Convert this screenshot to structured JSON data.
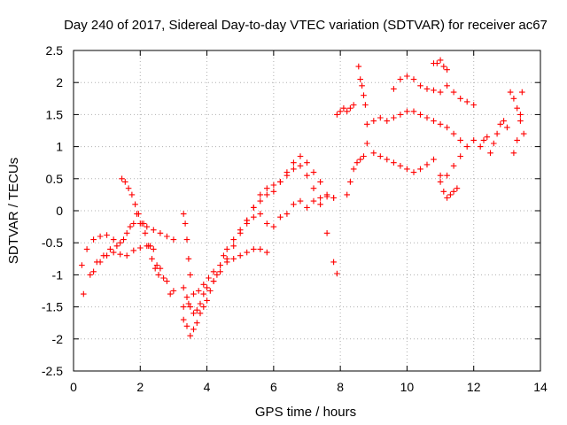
{
  "chart_data": {
    "type": "scatter",
    "title": "Day 240 of 2017, Sidereal Day-to-day VTEC variation (SDTVAR) for receiver ac67",
    "xlabel": "GPS time / hours",
    "ylabel": "SDTVAR / TECUs",
    "xlim": [
      0,
      14
    ],
    "ylim": [
      -2.5,
      2.5
    ],
    "xticks": [
      "0",
      "2",
      "4",
      "6",
      "8",
      "10",
      "12",
      "14"
    ],
    "yticks": [
      "-2.5",
      "-2",
      "-1.5",
      "-1",
      "-0.5",
      "0",
      "0.5",
      "1",
      "1.5",
      "2",
      "2.5"
    ],
    "grid": true,
    "marker": "plus",
    "color": "#ff0000",
    "series": [
      {
        "x": [
          0.25,
          0.4,
          0.6,
          0.8,
          1.0,
          1.2,
          1.4,
          1.6,
          1.8,
          2.0,
          2.2,
          2.4,
          2.6,
          2.8,
          3.0
        ],
        "y": [
          -0.85,
          -0.6,
          -0.45,
          -0.4,
          -0.38,
          -0.45,
          -0.5,
          -0.35,
          -0.2,
          -0.2,
          -0.25,
          -0.3,
          -0.35,
          -0.4,
          -0.45
        ]
      },
      {
        "x": [
          0.3,
          0.5,
          0.7,
          0.9,
          1.1,
          1.3,
          1.5,
          1.7,
          1.9,
          2.1,
          2.3,
          2.5,
          2.7,
          2.9
        ],
        "y": [
          -1.3,
          -1.0,
          -0.8,
          -0.7,
          -0.6,
          -0.55,
          -0.45,
          -0.25,
          -0.05,
          -0.2,
          -0.55,
          -0.85,
          -1.05,
          -1.3
        ]
      },
      {
        "x": [
          0.6,
          0.8,
          1.0,
          1.2,
          1.4,
          1.6,
          1.8,
          2.0,
          2.2,
          2.4,
          2.6,
          2.8,
          3.0
        ],
        "y": [
          -0.95,
          -0.8,
          -0.7,
          -0.65,
          -0.68,
          -0.7,
          -0.62,
          -0.58,
          -0.55,
          -0.6,
          -0.9,
          -1.1,
          -1.25
        ]
      },
      {
        "x": [
          1.45,
          1.55,
          1.65,
          1.75,
          1.85,
          1.95,
          2.05,
          2.15,
          2.25,
          2.35,
          2.45,
          2.55
        ],
        "y": [
          0.5,
          0.45,
          0.35,
          0.25,
          0.1,
          -0.05,
          -0.2,
          -0.35,
          -0.55,
          -0.75,
          -0.9,
          -1.0
        ]
      },
      {
        "x": [
          3.3,
          3.4,
          3.5,
          3.6,
          3.7,
          3.8,
          3.9,
          4.0,
          4.1,
          4.2,
          4.3,
          4.4,
          4.5,
          4.6,
          4.8,
          5.0,
          5.2,
          5.4,
          5.6,
          5.8,
          6.0,
          6.2,
          6.4,
          6.6,
          6.8,
          7.0,
          7.2,
          7.4,
          7.6,
          7.8
        ],
        "y": [
          -1.7,
          -1.8,
          -1.95,
          -1.85,
          -1.75,
          -1.6,
          -1.5,
          -1.4,
          -1.25,
          -1.1,
          -1.0,
          -0.85,
          -0.7,
          -0.6,
          -0.45,
          -0.3,
          -0.2,
          -0.1,
          -0.05,
          -0.2,
          -0.25,
          -0.1,
          -0.05,
          0.1,
          0.15,
          0.05,
          0.15,
          0.2,
          0.22,
          0.2
        ]
      },
      {
        "x": [
          3.3,
          3.4,
          3.5,
          3.6,
          3.7,
          3.8,
          3.9,
          4.0,
          4.2,
          4.4,
          4.6,
          4.8,
          5.0,
          5.2,
          5.4,
          5.6,
          5.8,
          6.0,
          6.2,
          6.4,
          6.6,
          6.8,
          7.0,
          7.2,
          7.4,
          7.6,
          7.8
        ],
        "y": [
          -1.2,
          -1.35,
          -1.5,
          -1.6,
          -1.55,
          -1.45,
          -1.3,
          -1.2,
          -1.1,
          -0.95,
          -0.75,
          -0.55,
          -0.35,
          -0.15,
          0.05,
          0.25,
          0.35,
          0.4,
          0.45,
          0.55,
          0.75,
          0.85,
          0.75,
          0.6,
          0.45,
          0.25,
          0.2
        ]
      },
      {
        "x": [
          3.3,
          3.45,
          3.6,
          3.75,
          3.9,
          4.05,
          4.2,
          4.4,
          4.6,
          4.8,
          5.0,
          5.2,
          5.4,
          5.6,
          5.8
        ],
        "y": [
          -1.5,
          -1.45,
          -1.3,
          -1.25,
          -1.15,
          -1.05,
          -0.95,
          -0.85,
          -0.8,
          -0.75,
          -0.7,
          -0.65,
          -0.6,
          -0.6,
          -0.65
        ]
      },
      {
        "x": [
          5.2,
          5.4,
          5.6,
          5.8,
          6.0,
          6.2,
          6.4,
          6.6,
          6.8,
          7.0,
          7.2,
          7.4,
          7.6,
          7.8,
          7.9
        ],
        "y": [
          -0.15,
          0.05,
          0.15,
          0.25,
          0.3,
          0.45,
          0.6,
          0.65,
          0.7,
          0.55,
          0.35,
          0.1,
          -0.35,
          -0.8,
          -0.98
        ]
      },
      {
        "x": [
          3.3,
          3.35,
          3.4,
          3.45,
          3.5
        ],
        "y": [
          -0.05,
          -0.2,
          -0.45,
          -0.75,
          -1.0
        ]
      },
      {
        "x": [
          7.9,
          8.0,
          8.1,
          8.2,
          8.3,
          8.4
        ],
        "y": [
          1.5,
          1.55,
          1.6,
          1.55,
          1.6,
          1.65
        ]
      },
      {
        "x": [
          8.2,
          8.3,
          8.4,
          8.5,
          8.6,
          8.7
        ],
        "y": [
          0.25,
          0.45,
          0.65,
          0.75,
          0.8,
          0.85
        ]
      },
      {
        "x": [
          8.55,
          8.6,
          8.65,
          8.7,
          8.75
        ],
        "y": [
          2.25,
          2.05,
          1.95,
          1.8,
          1.65
        ]
      },
      {
        "x": [
          8.8,
          9.0,
          9.2,
          9.4,
          9.6,
          9.8,
          10.0,
          10.2,
          10.4,
          10.6,
          10.8,
          11.0,
          11.2,
          11.4,
          11.6,
          11.8,
          12.0
        ],
        "y": [
          1.05,
          0.9,
          0.85,
          0.8,
          0.75,
          0.7,
          0.65,
          0.6,
          0.65,
          0.72,
          0.8,
          0.55,
          0.55,
          0.7,
          0.85,
          1.0,
          1.1
        ]
      },
      {
        "x": [
          8.8,
          9.0,
          9.2,
          9.4,
          9.6,
          9.8,
          10.0,
          10.2,
          10.4,
          10.6,
          10.8,
          11.0,
          11.2,
          11.4,
          11.6
        ],
        "y": [
          1.35,
          1.4,
          1.45,
          1.4,
          1.45,
          1.5,
          1.55,
          1.55,
          1.5,
          1.45,
          1.4,
          1.35,
          1.3,
          1.2,
          1.1
        ]
      },
      {
        "x": [
          9.6,
          9.8,
          10.0,
          10.2,
          10.4,
          10.6,
          10.8,
          11.0,
          11.2,
          11.4,
          11.6,
          11.8,
          12.0
        ],
        "y": [
          1.9,
          2.05,
          2.1,
          2.05,
          1.95,
          1.9,
          1.88,
          1.85,
          1.95,
          1.85,
          1.75,
          1.7,
          1.65
        ]
      },
      {
        "x": [
          10.8,
          10.9,
          11.0,
          11.1,
          11.2
        ],
        "y": [
          2.3,
          2.3,
          2.35,
          2.25,
          2.2
        ]
      },
      {
        "x": [
          11.0,
          11.1,
          11.2,
          11.3,
          11.4,
          11.5
        ],
        "y": [
          0.45,
          0.3,
          0.2,
          0.25,
          0.3,
          0.35
        ]
      },
      {
        "x": [
          12.2,
          12.3,
          12.4,
          12.5,
          12.6,
          12.7,
          12.8,
          12.9,
          13.0
        ],
        "y": [
          1.0,
          1.1,
          1.15,
          0.9,
          1.05,
          1.2,
          1.35,
          1.4,
          1.3
        ]
      },
      {
        "x": [
          13.1,
          13.2,
          13.3,
          13.4,
          13.5,
          13.2,
          13.3,
          13.4,
          13.45
        ],
        "y": [
          1.85,
          1.75,
          1.6,
          1.4,
          1.2,
          0.9,
          1.1,
          1.5,
          1.85
        ]
      }
    ]
  }
}
